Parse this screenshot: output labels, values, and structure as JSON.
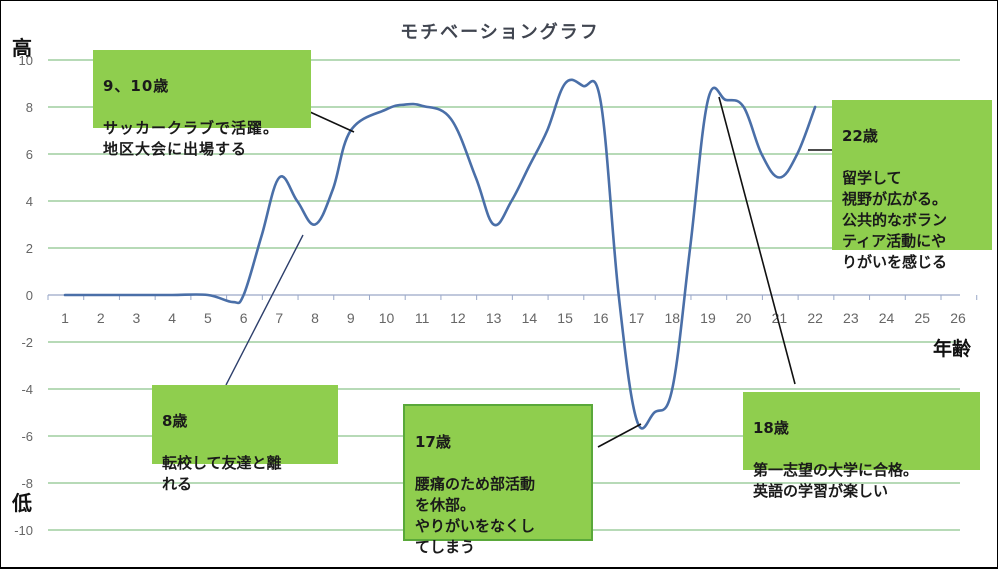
{
  "chart_data": {
    "type": "line",
    "title": "モチベーショングラフ",
    "xlabel": "年齢",
    "ylabel_high": "高",
    "ylabel_low": "低",
    "x": [
      1,
      2,
      3,
      4,
      5,
      6,
      7,
      8,
      9,
      10,
      11,
      12,
      13,
      14,
      15,
      16,
      17,
      18,
      19,
      20,
      21,
      22,
      23,
      24,
      25,
      26
    ],
    "series": [
      {
        "name": "モチベーション",
        "x": [
          1,
          2,
          3,
          4,
          5,
          5.7,
          6,
          6.5,
          7,
          7.5,
          8,
          8.5,
          9,
          10,
          10.5,
          11,
          11.8,
          12.5,
          13,
          13.5,
          14,
          14.5,
          15,
          15.5,
          16,
          16.5,
          17,
          17.5,
          18,
          18.5,
          19,
          19.5,
          20,
          20.5,
          21,
          21.5,
          22
        ],
        "values": [
          0,
          0,
          0,
          0,
          0,
          -0.3,
          0,
          2.5,
          5,
          4,
          3,
          4.5,
          7,
          7.9,
          8.1,
          8.05,
          7.5,
          5,
          3,
          4,
          5.5,
          7,
          9,
          8.9,
          8.2,
          0,
          -5.3,
          -5,
          -4,
          2,
          8.3,
          8.3,
          8,
          6,
          5,
          6,
          8
        ]
      }
    ],
    "ylim": [
      -10,
      10
    ],
    "yticks": [
      10,
      8,
      6,
      4,
      2,
      0,
      -2,
      -4,
      -6,
      -8,
      -10
    ],
    "xlim": [
      1,
      26
    ],
    "grid": true,
    "line_color": "#4a6fa8",
    "grid_color": "#8cc48c",
    "annotations": [
      {
        "id": "age9-10",
        "title": "9、10歳",
        "text": "サッカークラブで活躍。\n地区大会に出場する",
        "points_to_x": 9.05,
        "points_to_y": 7.0
      },
      {
        "id": "age8",
        "title": "8歳",
        "text": "転校して友達と離\nれる",
        "points_to_x": 7.7,
        "points_to_y": 2.5
      },
      {
        "id": "age17",
        "title": "17歳",
        "text": "腰痛のため部活動\nを休部。\nやりがいをなくし\nてしまう",
        "points_to_x": 17.2,
        "points_to_y": -5.5
      },
      {
        "id": "age18",
        "title": "18歳",
        "text": "第一志望の大学に合格。\n英語の学習が楽しい",
        "points_to_x": 19.3,
        "points_to_y": 8.3
      },
      {
        "id": "age22",
        "title": "22歳",
        "text": "留学して\n視野が広がる。\n公共的なボランティア活動にやりがいを感じる",
        "points_to_x": 21.8,
        "points_to_y": 6.2
      }
    ]
  },
  "callouts": [
    {
      "title": "9、10歳",
      "body": "サッカークラブで活躍。\n地区大会に出場する"
    },
    {
      "title": "8歳",
      "body": "転校して友達と離\nれる"
    },
    {
      "title": "17歳",
      "body": "腰痛のため部活動\nを休部。\nやりがいをなくし\nてしまう"
    },
    {
      "title": "18歳",
      "body": "第一志望の大学に合格。\n英語の学習が楽しい"
    },
    {
      "title": "22歳",
      "body": "留学して\n視野が広がる。\n公共的なボラン\nティア活動にや\nりがいを感じる"
    }
  ],
  "labels": {
    "title": "モチベーショングラフ",
    "high": "高",
    "low": "低",
    "xaxis": "年齢"
  },
  "colors": {
    "callout_fill": "#8fce4e",
    "callout_border": "#5aa83a",
    "line": "#4a6fa8",
    "grid": "#8cc48c",
    "axis": "#9aa8c8"
  }
}
